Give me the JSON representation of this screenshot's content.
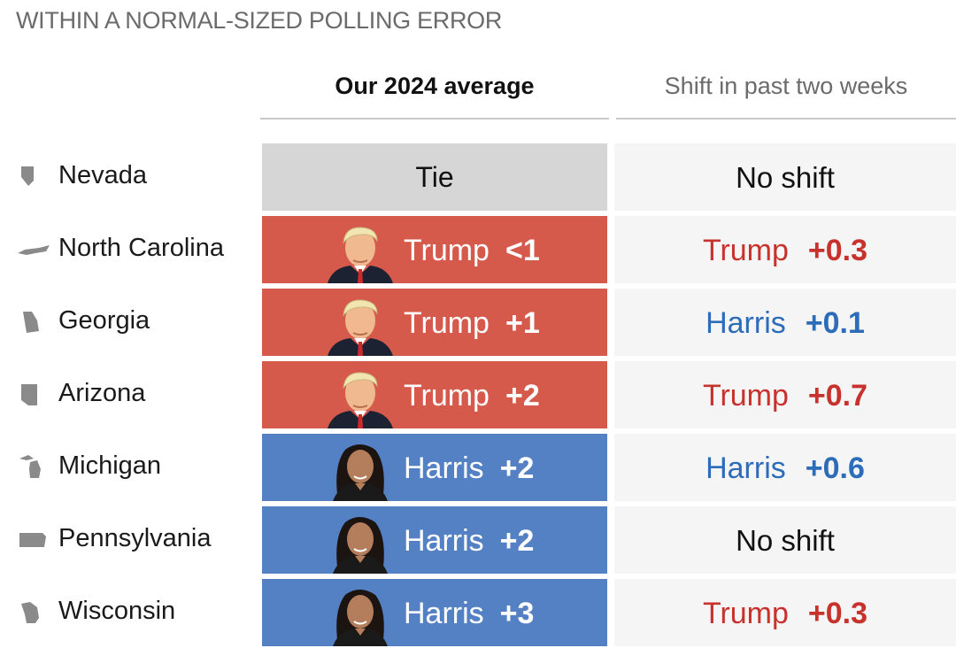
{
  "section_label": "WITHIN A NORMAL-SIZED POLLING ERROR",
  "columns": {
    "average": "Our 2024 average",
    "shift": "Shift in past two weeks"
  },
  "colors": {
    "trump_bg": "#d65a4c",
    "harris_bg": "#5480c4",
    "tie_bg": "#d6d6d6",
    "trump_text": "#c8322c",
    "harris_text": "#2c6cb8"
  },
  "chart_data": {
    "type": "table",
    "rows": [
      {
        "state": "Nevada",
        "state_icon": "nevada-shape-icon",
        "average": {
          "leader": "tie",
          "label": "Tie",
          "candidate": "",
          "value": ""
        },
        "shift": {
          "leader": "none",
          "label": "No shift",
          "candidate": "",
          "value": ""
        }
      },
      {
        "state": "North Carolina",
        "state_icon": "north-carolina-shape-icon",
        "average": {
          "leader": "trump",
          "label": "",
          "candidate": "Trump",
          "value": "<1"
        },
        "shift": {
          "leader": "trump",
          "label": "",
          "candidate": "Trump",
          "value": "+0.3"
        }
      },
      {
        "state": "Georgia",
        "state_icon": "georgia-shape-icon",
        "average": {
          "leader": "trump",
          "label": "",
          "candidate": "Trump",
          "value": "+1"
        },
        "shift": {
          "leader": "harris",
          "label": "",
          "candidate": "Harris",
          "value": "+0.1"
        }
      },
      {
        "state": "Arizona",
        "state_icon": "arizona-shape-icon",
        "average": {
          "leader": "trump",
          "label": "",
          "candidate": "Trump",
          "value": "+2"
        },
        "shift": {
          "leader": "trump",
          "label": "",
          "candidate": "Trump",
          "value": "+0.7"
        }
      },
      {
        "state": "Michigan",
        "state_icon": "michigan-shape-icon",
        "average": {
          "leader": "harris",
          "label": "",
          "candidate": "Harris",
          "value": "+2"
        },
        "shift": {
          "leader": "harris",
          "label": "",
          "candidate": "Harris",
          "value": "+0.6"
        }
      },
      {
        "state": "Pennsylvania",
        "state_icon": "pennsylvania-shape-icon",
        "average": {
          "leader": "harris",
          "label": "",
          "candidate": "Harris",
          "value": "+2"
        },
        "shift": {
          "leader": "none",
          "label": "No shift",
          "candidate": "",
          "value": ""
        }
      },
      {
        "state": "Wisconsin",
        "state_icon": "wisconsin-shape-icon",
        "average": {
          "leader": "harris",
          "label": "",
          "candidate": "Harris",
          "value": "+3"
        },
        "shift": {
          "leader": "trump",
          "label": "",
          "candidate": "Trump",
          "value": "+0.3"
        }
      }
    ]
  }
}
